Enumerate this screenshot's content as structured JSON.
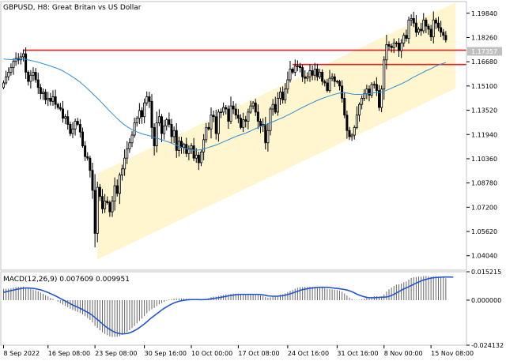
{
  "chart_data": [
    {
      "type": "candlestick",
      "title": "GBPUSD, H8:  Great Britan vs US Dollar",
      "symbol": "GBPUSD",
      "timeframe": "H8",
      "ylim": [
        1.031,
        1.206
      ],
      "y_ticks": [
        "1.19840",
        "1.18260",
        "1.16680",
        "1.15100",
        "1.13520",
        "1.11940",
        "1.10360",
        "1.08780",
        "1.07200",
        "1.05620",
        "1.04040"
      ],
      "current_price": "1.17357",
      "x_ticks": [
        "8 Sep 2022",
        "16 Sep 08:00",
        "23 Sep 08:00",
        "30 Sep 16:00",
        "10 Oct 00:00",
        "17 Oct 08:00",
        "24 Oct 16:00",
        "31 Oct 16:00",
        "8 Nov 00:00",
        "15 Nov 08:00"
      ],
      "x_tick_index": [
        0,
        18,
        37,
        57,
        76,
        95,
        115,
        135,
        154,
        173
      ],
      "horizontal_lines": [
        {
          "from_index": 8,
          "value": 1.1743
        },
        {
          "from_index": 117,
          "value": 1.165
        }
      ],
      "channel": {
        "from_index": 38,
        "to_index": 183,
        "upper": [
          1.094,
          1.2055
        ],
        "lower": [
          1.038,
          1.1495
        ]
      },
      "series": [
        {
          "name": "close",
          "values": [
            1.153,
            1.157,
            1.16,
            1.163,
            1.167,
            1.169,
            1.168,
            1.17,
            1.172,
            1.16,
            1.154,
            1.158,
            1.16,
            1.155,
            1.15,
            1.146,
            1.147,
            1.142,
            1.143,
            1.141,
            1.144,
            1.139,
            1.137,
            1.136,
            1.13,
            1.131,
            1.126,
            1.12,
            1.123,
            1.128,
            1.126,
            1.121,
            1.112,
            1.105,
            1.104,
            1.096,
            1.083,
            1.055,
            1.085,
            1.079,
            1.071,
            1.076,
            1.075,
            1.069,
            1.076,
            1.086,
            1.081,
            1.093,
            1.097,
            1.104,
            1.11,
            1.114,
            1.119,
            1.127,
            1.13,
            1.135,
            1.131,
            1.14,
            1.144,
            1.141,
            1.124,
            1.112,
            1.127,
            1.131,
            1.12,
            1.125,
            1.129,
            1.126,
            1.118,
            1.122,
            1.109,
            1.115,
            1.111,
            1.113,
            1.107,
            1.11,
            1.112,
            1.104,
            1.106,
            1.101,
            1.108,
            1.116,
            1.124,
            1.123,
            1.132,
            1.131,
            1.12,
            1.134,
            1.134,
            1.137,
            1.136,
            1.128,
            1.138,
            1.136,
            1.132,
            1.13,
            1.124,
            1.129,
            1.128,
            1.134,
            1.138,
            1.14,
            1.134,
            1.128,
            1.125,
            1.126,
            1.114,
            1.122,
            1.136,
            1.139,
            1.134,
            1.143,
            1.147,
            1.142,
            1.149,
            1.155,
            1.162,
            1.16,
            1.164,
            1.164,
            1.163,
            1.157,
            1.156,
            1.157,
            1.161,
            1.158,
            1.162,
            1.157,
            1.16,
            1.154,
            1.153,
            1.148,
            1.156,
            1.157,
            1.154,
            1.154,
            1.151,
            1.143,
            1.132,
            1.122,
            1.118,
            1.119,
            1.124,
            1.132,
            1.139,
            1.143,
            1.146,
            1.149,
            1.145,
            1.152,
            1.152,
            1.148,
            1.137,
            1.149,
            1.168,
            1.178,
            1.177,
            1.176,
            1.179,
            1.179,
            1.174,
            1.179,
            1.184,
            1.182,
            1.194,
            1.195,
            1.192,
            1.186,
            1.188,
            1.187,
            1.194,
            1.19,
            1.188,
            1.183,
            1.194,
            1.192,
            1.189,
            1.186,
            1.184,
            1.181
          ]
        },
        {
          "name": "moving average",
          "values": [
            1.1686,
            1.1684,
            1.1683,
            1.1682,
            1.1683,
            1.1684,
            1.1685,
            1.1686,
            1.1686,
            1.1684,
            1.168,
            1.1676,
            1.1673,
            1.1669,
            1.1665,
            1.166,
            1.1655,
            1.165,
            1.1645,
            1.164,
            1.1634,
            1.1629,
            1.1623,
            1.1616,
            1.1608,
            1.1599,
            1.1589,
            1.1579,
            1.1569,
            1.1558,
            1.1547,
            1.1535,
            1.1521,
            1.1507,
            1.1492,
            1.1477,
            1.1461,
            1.1445,
            1.143,
            1.1414,
            1.1397,
            1.138,
            1.1363,
            1.1346,
            1.133,
            1.1314,
            1.1298,
            1.1283,
            1.1269,
            1.1256,
            1.1245,
            1.1235,
            1.1226,
            1.1218,
            1.1211,
            1.1205,
            1.1199,
            1.1194,
            1.119,
            1.1186,
            1.1181,
            1.1175,
            1.117,
            1.1165,
            1.116,
            1.1154,
            1.1149,
            1.1144,
            1.1137,
            1.113,
            1.1124,
            1.1117,
            1.1111,
            1.1106,
            1.1101,
            1.1097,
            1.1094,
            1.1092,
            1.1092,
            1.1093,
            1.1096,
            1.11,
            1.1105,
            1.111,
            1.1115,
            1.112,
            1.1125,
            1.1132,
            1.1139,
            1.1146,
            1.1153,
            1.116,
            1.1167,
            1.1174,
            1.1181,
            1.1187,
            1.1192,
            1.1198,
            1.1203,
            1.121,
            1.1217,
            1.1225,
            1.1232,
            1.1239,
            1.1246,
            1.1253,
            1.1258,
            1.1263,
            1.127,
            1.1277,
            1.1284,
            1.1291,
            1.1298,
            1.1304,
            1.1312,
            1.132,
            1.1328,
            1.1336,
            1.1345,
            1.1354,
            1.1362,
            1.137,
            1.1378,
            1.1386,
            1.1394,
            1.1401,
            1.1409,
            1.1416,
            1.1423,
            1.1429,
            1.1435,
            1.144,
            1.1446,
            1.1451,
            1.1456,
            1.146,
            1.1464,
            1.1466,
            1.1466,
            1.1464,
            1.1461,
            1.1458,
            1.1456,
            1.1455,
            1.1455,
            1.1456,
            1.1458,
            1.1459,
            1.1461,
            1.1463,
            1.1466,
            1.1468,
            1.1468,
            1.147,
            1.1475,
            1.1482,
            1.1489,
            1.1496,
            1.1503,
            1.151,
            1.1517,
            1.1524,
            1.1532,
            1.154,
            1.1549,
            1.1559,
            1.1568,
            1.1576,
            1.1584,
            1.1592,
            1.1601,
            1.1609,
            1.1616,
            1.1623,
            1.1631,
            1.1639,
            1.1646,
            1.1652,
            1.1658,
            1.1663
          ]
        }
      ]
    },
    {
      "type": "bar",
      "title": "MACD(12,26,9) 0.007609 0.009951",
      "ylim": [
        -0.02413,
        0.01521
      ],
      "y_ticks": [
        "0.015215",
        "0.000000",
        "-0.024132"
      ],
      "series": [
        {
          "name": "MACD",
          "values": [
            0.006,
            0.0061,
            0.0062,
            0.0064,
            0.0067,
            0.007,
            0.0071,
            0.0072,
            0.0072,
            0.0068,
            0.0063,
            0.006,
            0.0057,
            0.0053,
            0.0047,
            0.004,
            0.0034,
            0.0026,
            0.002,
            0.0012,
            0.0006,
            -0.0001,
            -0.0008,
            -0.0016,
            -0.0024,
            -0.0031,
            -0.0038,
            -0.0046,
            -0.0053,
            -0.0058,
            -0.0063,
            -0.0069,
            -0.0077,
            -0.0086,
            -0.0096,
            -0.0106,
            -0.0119,
            -0.0138,
            -0.0149,
            -0.0161,
            -0.0172,
            -0.0181,
            -0.0188,
            -0.0194,
            -0.0197,
            -0.0197,
            -0.0196,
            -0.0193,
            -0.0186,
            -0.0179,
            -0.017,
            -0.0161,
            -0.015,
            -0.0138,
            -0.0125,
            -0.0111,
            -0.0099,
            -0.0085,
            -0.0071,
            -0.0058,
            -0.0049,
            -0.0042,
            -0.0032,
            -0.0022,
            -0.0016,
            -0.0009,
            -0.0002,
            0.0003,
            0.0005,
            0.0008,
            0.0008,
            0.0009,
            0.0009,
            0.0009,
            0.0008,
            0.0007,
            0.0006,
            0.0004,
            0.0003,
            0.0001,
            0.0001,
            0.0003,
            0.0007,
            0.001,
            0.0015,
            0.0019,
            0.0019,
            0.0022,
            0.0025,
            0.0028,
            0.0031,
            0.0031,
            0.0033,
            0.0035,
            0.0035,
            0.0035,
            0.0033,
            0.0032,
            0.0031,
            0.0031,
            0.0031,
            0.0032,
            0.0031,
            0.0028,
            0.0025,
            0.0022,
            0.0016,
            0.0013,
            0.0015,
            0.0018,
            0.002,
            0.0024,
            0.0029,
            0.0031,
            0.0036,
            0.0042,
            0.005,
            0.0055,
            0.0061,
            0.0066,
            0.0069,
            0.007,
            0.0071,
            0.0071,
            0.0072,
            0.0072,
            0.0072,
            0.0071,
            0.007,
            0.0067,
            0.0064,
            0.006,
            0.0059,
            0.0058,
            0.0056,
            0.0054,
            0.0051,
            0.0045,
            0.0036,
            0.0025,
            0.0014,
            0.0006,
            0.0002,
            0.0001,
            0.0002,
            0.0004,
            0.0007,
            0.0011,
            0.0013,
            0.0017,
            0.0021,
            0.0021,
            0.0017,
            0.0019,
            0.0031,
            0.0046,
            0.0058,
            0.0067,
            0.0076,
            0.0083,
            0.0085,
            0.0089,
            0.0096,
            0.01,
            0.011,
            0.0119,
            0.0123,
            0.0124,
            0.0126,
            0.0126,
            0.0129,
            0.0129,
            0.0128,
            0.0125,
            0.0127,
            0.0127,
            0.0126,
            0.0124,
            0.0121,
            0.0117
          ]
        },
        {
          "name": "Signal",
          "values": [
            0.0041,
            0.0045,
            0.0048,
            0.0051,
            0.0054,
            0.0057,
            0.006,
            0.0062,
            0.0064,
            0.0065,
            0.0065,
            0.0064,
            0.0063,
            0.0061,
            0.0058,
            0.0055,
            0.0051,
            0.0046,
            0.0041,
            0.0035,
            0.0029,
            0.0023,
            0.0016,
            0.0009,
            0.0002,
            -0.0005,
            -0.0012,
            -0.0019,
            -0.0026,
            -0.0032,
            -0.0038,
            -0.0044,
            -0.0051,
            -0.0058,
            -0.0065,
            -0.0073,
            -0.0082,
            -0.0093,
            -0.0104,
            -0.0115,
            -0.0127,
            -0.0138,
            -0.0148,
            -0.0157,
            -0.0165,
            -0.0171,
            -0.0176,
            -0.0179,
            -0.0181,
            -0.018,
            -0.0178,
            -0.0175,
            -0.017,
            -0.0163,
            -0.0156,
            -0.0147,
            -0.0137,
            -0.0127,
            -0.0116,
            -0.0104,
            -0.0093,
            -0.0083,
            -0.0073,
            -0.0063,
            -0.0053,
            -0.0044,
            -0.0036,
            -0.0028,
            -0.0021,
            -0.0015,
            -0.001,
            -0.0006,
            -0.0003,
            -0.0001,
            0.0001,
            0.0002,
            0.0003,
            0.0003,
            0.0003,
            0.0003,
            0.0002,
            0.0003,
            0.0003,
            0.0005,
            0.0007,
            0.0009,
            0.0011,
            0.0013,
            0.0015,
            0.0018,
            0.002,
            0.0023,
            0.0025,
            0.0027,
            0.0029,
            0.003,
            0.0031,
            0.0031,
            0.0031,
            0.0031,
            0.0031,
            0.0031,
            0.0031,
            0.0031,
            0.003,
            0.0028,
            0.0026,
            0.0023,
            0.0022,
            0.0021,
            0.0021,
            0.0021,
            0.0023,
            0.0024,
            0.0027,
            0.003,
            0.0034,
            0.0038,
            0.0043,
            0.0047,
            0.0052,
            0.0056,
            0.0059,
            0.0061,
            0.0064,
            0.0065,
            0.0067,
            0.0068,
            0.0069,
            0.0069,
            0.0069,
            0.0069,
            0.0068,
            0.0066,
            0.0064,
            0.0063,
            0.0061,
            0.0059,
            0.0057,
            0.0054,
            0.005,
            0.0045,
            0.0039,
            0.0032,
            0.0027,
            0.0022,
            0.0018,
            0.0015,
            0.0013,
            0.0013,
            0.0013,
            0.0014,
            0.0015,
            0.0016,
            0.0016,
            0.0017,
            0.002,
            0.0025,
            0.0031,
            0.0038,
            0.0046,
            0.0053,
            0.006,
            0.0066,
            0.0072,
            0.0078,
            0.0085,
            0.0091,
            0.0097,
            0.0103,
            0.0108,
            0.0111,
            0.0115,
            0.0118,
            0.012,
            0.0121,
            0.0122,
            0.0123,
            0.0124,
            0.0124,
            0.0124,
            0.0124,
            0.0123
          ]
        }
      ]
    }
  ],
  "colors": {
    "background": "#ffffff",
    "grid_frame": "#c0c0c0",
    "candle": "#000000",
    "channel_fill": "#fff5cf",
    "hline": "#e81d1d",
    "moving_average": "#2f8fd6",
    "macd_histogram": "#666666",
    "signal_line": "#1f53d8",
    "price_tag_bg": "#c0c0c0"
  }
}
